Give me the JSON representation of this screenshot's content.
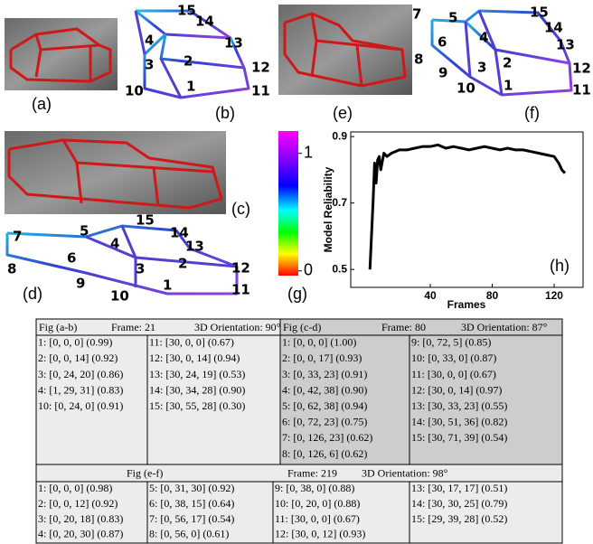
{
  "panel_labels": {
    "a": "(a)",
    "b": "(b)",
    "c": "(c)",
    "d": "(d)",
    "e": "(e)",
    "f": "(f)",
    "g": "(g)",
    "h": "(h)"
  },
  "wireframes": {
    "b": [
      "15",
      "14",
      "4",
      "13",
      "3",
      "2",
      "12",
      "10",
      "1",
      "11"
    ],
    "d": [
      "7",
      "5",
      "15",
      "14",
      "4",
      "13",
      "6",
      "3",
      "2",
      "12",
      "8",
      "9",
      "10",
      "1",
      "11"
    ],
    "f": [
      "7",
      "5",
      "15",
      "14",
      "4",
      "13",
      "6",
      "8",
      "3",
      "2",
      "12",
      "9",
      "10",
      "1",
      "11"
    ]
  },
  "colorbar": {
    "lim": [
      -0.04,
      1.19
    ],
    "ticks": [
      0,
      1
    ]
  },
  "chart_data": {
    "type": "line",
    "xlabel": "Frames",
    "ylabel": "Model Reliability",
    "xlim": [
      -11.4,
      138.7
    ],
    "ylim": [
      0.446,
      0.914
    ],
    "xticks": [
      40,
      80,
      120
    ],
    "yticks": [
      0.5,
      0.7,
      0.9
    ],
    "color": "#000000",
    "x": [
      1,
      2,
      3,
      4,
      5,
      6,
      7,
      8,
      10,
      12,
      15,
      20,
      25,
      30,
      35,
      40,
      45,
      50,
      55,
      60,
      65,
      70,
      75,
      80,
      85,
      90,
      95,
      100,
      105,
      110,
      115,
      120,
      123,
      125,
      127
    ],
    "values": [
      0.5,
      0.6,
      0.7,
      0.82,
      0.76,
      0.83,
      0.84,
      0.8,
      0.85,
      0.84,
      0.85,
      0.86,
      0.86,
      0.865,
      0.87,
      0.87,
      0.875,
      0.865,
      0.87,
      0.865,
      0.86,
      0.865,
      0.87,
      0.865,
      0.86,
      0.865,
      0.86,
      0.86,
      0.855,
      0.85,
      0.845,
      0.84,
      0.82,
      0.8,
      0.79
    ]
  },
  "table": {
    "blocks": [
      {
        "header": [
          "Fig (a-b)",
          "Frame: 21",
          "3D Orientation: 90°"
        ],
        "columns": [
          [
            "1: [0, 0, 0] (0.99)",
            "2: [0, 0, 14] (0.92)",
            "3: [0, 24, 20] (0.86)",
            "4: [1, 29, 31] (0.83)",
            "10: [0, 24, 0] (0.91)"
          ],
          [
            "11: [30, 0, 0] (0.67)",
            "12: [30, 0, 14] (0.94)",
            "13: [30, 24, 19] (0.53)",
            "14: [30, 34, 28] (0.90)",
            "15: [30, 55, 28] (0.30)"
          ]
        ]
      },
      {
        "header": [
          "Fig (c-d)",
          "Frame: 80",
          "3D Orientation: 87°"
        ],
        "columns": [
          [
            "1: [0, 0, 0] (1.00)",
            "2: [0, 0, 17] (0.93)",
            "3: [0, 33, 23] (0.91)",
            "4: [0, 42, 38] (0.90)",
            "5: [0, 62, 38] (0.94)",
            "6: [0, 72, 23] (0.75)",
            "7: [0, 126, 23] (0.62)",
            "8: [0, 126, 6] (0.62)"
          ],
          [
            "9: [0, 72, 5] (0.85)",
            "10: [0, 33, 0] (0.87)",
            "11: [30, 0, 0] (0.67)",
            "12: [30, 0, 14] (0.97)",
            "13: [30, 33, 23] (0.55)",
            "14: [30, 51, 36] (0.82)",
            "15: [30, 71, 39] (0.54)"
          ]
        ]
      },
      {
        "header": [
          "Fig (e-f)",
          "Frame: 219",
          "3D Orientation: 98°"
        ],
        "columns": [
          [
            "1: [0, 0, 0] (0.98)",
            "2: [0, 0, 12] (0.92)",
            "3: [0, 20, 18] (0.83)",
            "4: [0, 20, 30] (0.87)"
          ],
          [
            "5: [0, 31, 30] (0.92)",
            "6: [0, 38, 15] (0.64)",
            "7: [0, 56, 17] (0.54)",
            "8: [0, 56, 0] (0.61)"
          ],
          [
            "9: [0, 38, 0] (0.88)",
            "10: [0, 20, 0] (0.88)",
            "11: [30, 0, 0] (0.67)",
            "12: [30, 0, 12] (0.93)"
          ],
          [
            "13: [30, 17, 17] (0.51)",
            "14: [30, 30, 25] (0.79)",
            "15: [29, 39, 28] (0.52)"
          ]
        ]
      }
    ]
  }
}
